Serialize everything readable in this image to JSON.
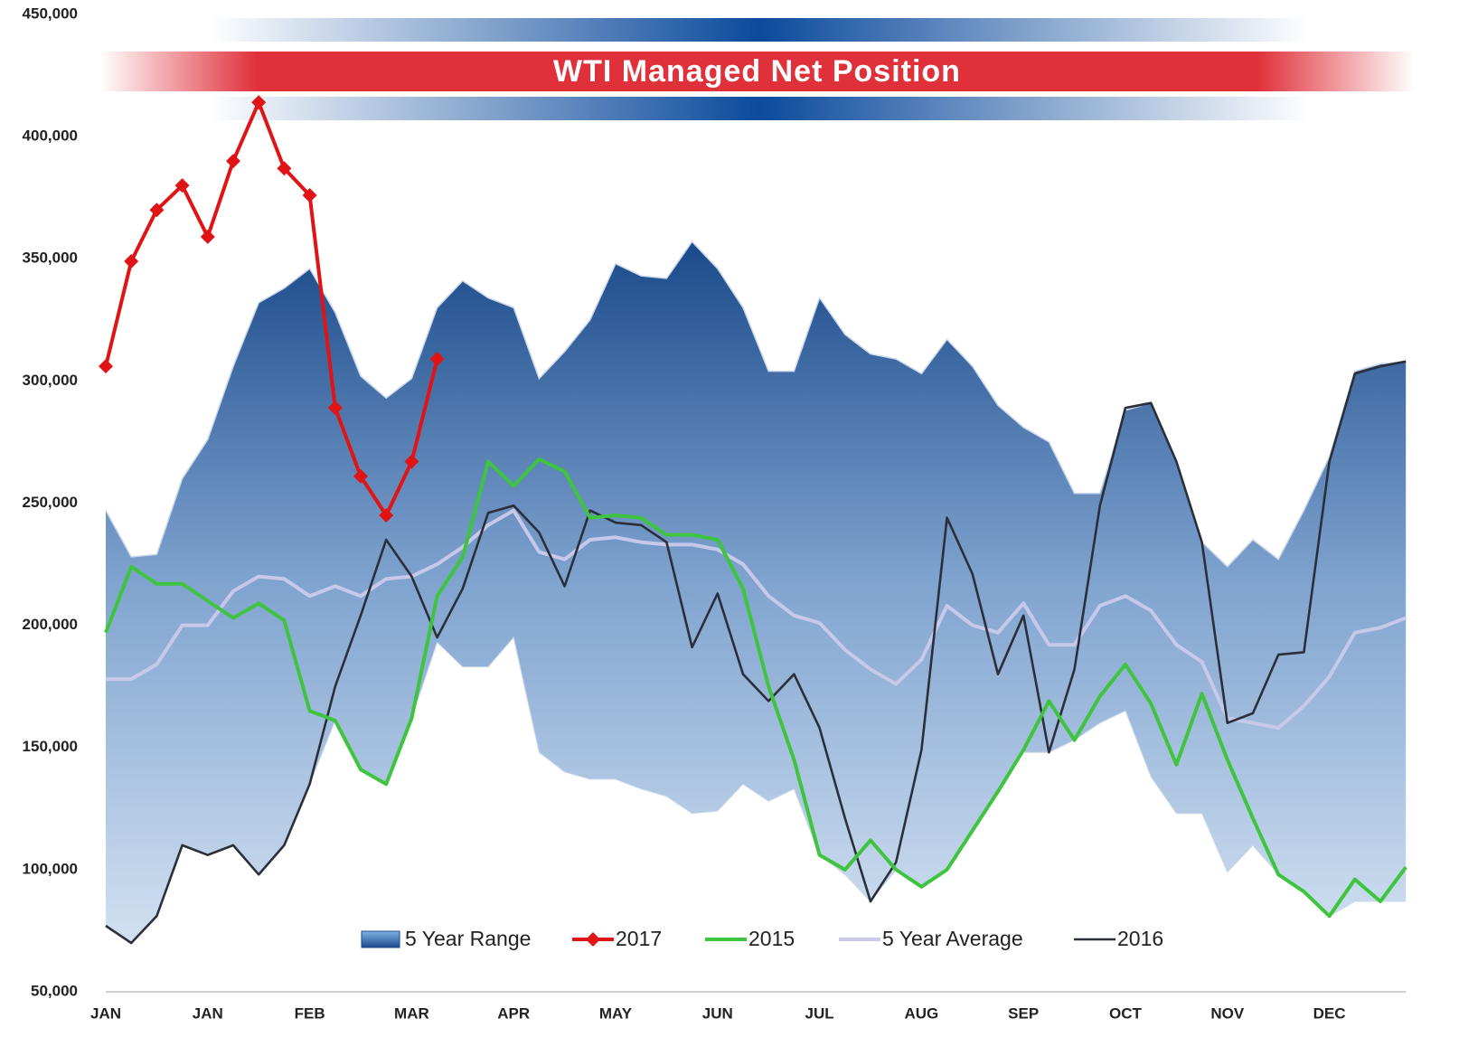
{
  "chart_data": {
    "type": "line",
    "title": "WTI Managed Net Position",
    "categories": [
      "JAN",
      null,
      null,
      null,
      "JAN",
      null,
      null,
      null,
      "FEB",
      null,
      null,
      null,
      "MAR",
      null,
      null,
      null,
      "APR",
      null,
      null,
      null,
      "MAY",
      null,
      null,
      null,
      "JUN",
      null,
      null,
      null,
      "JUL",
      null,
      null,
      null,
      "AUG",
      null,
      null,
      null,
      "SEP",
      null,
      null,
      null,
      "OCT",
      null,
      null,
      null,
      "NOV",
      null,
      null,
      null,
      "DEC",
      null,
      null,
      null
    ],
    "ylim": [
      50000,
      450000
    ],
    "yticks": [
      {
        "value": 50000,
        "label": "50,000"
      },
      {
        "value": 100000,
        "label": "100,000"
      },
      {
        "value": 150000,
        "label": "150,000"
      },
      {
        "value": 200000,
        "label": "200,000"
      },
      {
        "value": 250000,
        "label": "250,000"
      },
      {
        "value": 300000,
        "label": "300,000"
      },
      {
        "value": 350000,
        "label": "350,000"
      },
      {
        "value": 400000,
        "label": "400,000"
      },
      {
        "value": 450000,
        "label": "450,000"
      }
    ],
    "grid": false,
    "legend": "bottom",
    "series": [
      {
        "name": "5 Year Range",
        "type": "range",
        "color": "#2c5a9e",
        "high": [
          247000,
          228000,
          229000,
          260000,
          276000,
          306000,
          332000,
          338000,
          346000,
          328000,
          302000,
          293000,
          301000,
          330000,
          341000,
          334000,
          330000,
          301000,
          312000,
          325000,
          348000,
          343000,
          342000,
          357000,
          346000,
          330000,
          304000,
          304000,
          334000,
          319000,
          311000,
          309000,
          303000,
          317000,
          306000,
          290000,
          281000,
          275000,
          254000,
          254000,
          288000,
          291000,
          267000,
          234000,
          224000,
          235000,
          227000,
          247000,
          269000,
          304000,
          307000,
          308000
        ],
        "low": [
          77000,
          70000,
          81000,
          110000,
          106000,
          110000,
          98000,
          110000,
          135000,
          161000,
          141000,
          135000,
          162000,
          193000,
          183000,
          183000,
          195000,
          148000,
          140000,
          137000,
          137000,
          133000,
          130000,
          123000,
          124000,
          135000,
          128000,
          133000,
          106000,
          98000,
          87000,
          100000,
          93000,
          100000,
          116000,
          132000,
          148000,
          148000,
          153000,
          160000,
          165000,
          138000,
          123000,
          123000,
          99000,
          110000,
          98000,
          91000,
          81000,
          87000,
          87000,
          87000
        ]
      },
      {
        "name": "2017",
        "color": "#e01414",
        "marker": "diamond",
        "values": [
          306000,
          349000,
          370000,
          380000,
          359000,
          390000,
          414000,
          387000,
          376000,
          289000,
          261000,
          245000,
          267000,
          309000,
          null,
          null,
          null,
          null,
          null,
          null,
          null,
          null,
          null,
          null,
          null,
          null,
          null,
          null,
          null,
          null,
          null,
          null,
          null,
          null,
          null,
          null,
          null,
          null,
          null,
          null,
          null,
          null,
          null,
          null,
          null,
          null,
          null,
          null,
          null,
          null,
          null,
          null
        ]
      },
      {
        "name": "2015",
        "color": "#3ec43e",
        "values": [
          197000,
          224000,
          217000,
          217000,
          210000,
          203000,
          209000,
          202000,
          165000,
          161000,
          141000,
          135000,
          162000,
          212000,
          228000,
          267000,
          257000,
          268000,
          263000,
          244000,
          245000,
          244000,
          237000,
          237000,
          235000,
          215000,
          175000,
          145000,
          106000,
          100000,
          112000,
          100000,
          93000,
          100000,
          116000,
          132000,
          149000,
          169000,
          153000,
          171000,
          184000,
          168000,
          143000,
          172000,
          145000,
          121000,
          98000,
          91000,
          81000,
          96000,
          87000,
          101000
        ]
      },
      {
        "name": "5 Year Average",
        "color": "#c8c8ea",
        "values": [
          178000,
          178000,
          184000,
          200000,
          200000,
          214000,
          220000,
          219000,
          212000,
          216000,
          212000,
          219000,
          220000,
          225000,
          232000,
          241000,
          247000,
          230000,
          227000,
          235000,
          236000,
          234000,
          233000,
          233000,
          231000,
          225000,
          212000,
          204000,
          201000,
          190000,
          182000,
          176000,
          186000,
          208000,
          200000,
          197000,
          209000,
          192000,
          192000,
          208000,
          212000,
          206000,
          192000,
          185000,
          162000,
          160000,
          158000,
          167000,
          179000,
          197000,
          199000,
          203000
        ]
      },
      {
        "name": "2016",
        "color": "#2b2f3a",
        "values": [
          77000,
          70000,
          81000,
          110000,
          106000,
          110000,
          98000,
          110000,
          135000,
          175000,
          204000,
          235000,
          220000,
          195000,
          215000,
          246000,
          249000,
          238000,
          216000,
          247000,
          242000,
          241000,
          234000,
          191000,
          213000,
          180000,
          169000,
          180000,
          158000,
          121000,
          87000,
          103000,
          149000,
          244000,
          221000,
          180000,
          204000,
          148000,
          182000,
          249000,
          289000,
          291000,
          267000,
          234000,
          160000,
          164000,
          188000,
          189000,
          267000,
          303000,
          306000,
          308000
        ]
      }
    ]
  }
}
